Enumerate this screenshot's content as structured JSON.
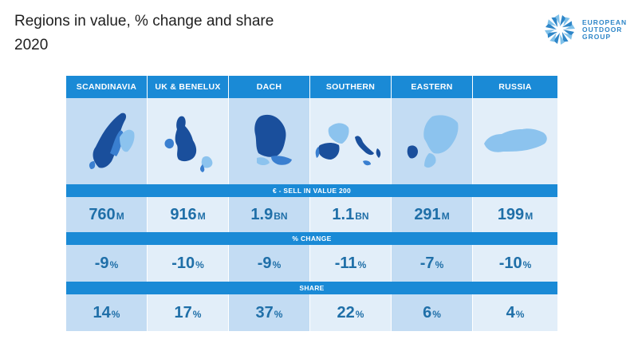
{
  "title": {
    "line1": "Regions in value, % change and share",
    "line2": "2020"
  },
  "logo": {
    "line1": "EUROPEAN",
    "line2": "OUTDOOR",
    "line3": "GROUP",
    "icon": "pinwheel-logo-icon"
  },
  "colors": {
    "header": "#1a8ad6",
    "cell_dark": "#c3dcf3",
    "cell_light": "#e2eef9",
    "value_text": "#1f6fa8",
    "map_dark": "#1a4f9c",
    "map_mid": "#3a7fd0",
    "map_light": "#8cc3ee"
  },
  "regions": [
    {
      "name": "SCANDINAVIA",
      "map": "scandinavia-map-icon"
    },
    {
      "name": "UK & BENELUX",
      "map": "uk-benelux-map-icon"
    },
    {
      "name": "DACH",
      "map": "dach-map-icon"
    },
    {
      "name": "SOUTHERN",
      "map": "southern-map-icon"
    },
    {
      "name": "EASTERN",
      "map": "eastern-map-icon"
    },
    {
      "name": "RUSSIA",
      "map": "russia-map-icon"
    }
  ],
  "sections": {
    "value": "€ - SELL IN VALUE 200",
    "change": "% CHANGE",
    "share": "SHARE"
  },
  "value": [
    {
      "num": "760",
      "unit": "M"
    },
    {
      "num": "916",
      "unit": "M"
    },
    {
      "num": "1.9",
      "unit": "BN"
    },
    {
      "num": "1.1",
      "unit": "BN"
    },
    {
      "num": "291",
      "unit": "M"
    },
    {
      "num": "199",
      "unit": "M"
    }
  ],
  "change": [
    {
      "num": "-9",
      "unit": "%"
    },
    {
      "num": "-10",
      "unit": "%"
    },
    {
      "num": "-9",
      "unit": "%"
    },
    {
      "num": "-11",
      "unit": "%"
    },
    {
      "num": "-7",
      "unit": "%"
    },
    {
      "num": "-10",
      "unit": "%"
    }
  ],
  "share": [
    {
      "num": "14",
      "unit": "%"
    },
    {
      "num": "17",
      "unit": "%"
    },
    {
      "num": "37",
      "unit": "%"
    },
    {
      "num": "22",
      "unit": "%"
    },
    {
      "num": "6",
      "unit": "%"
    },
    {
      "num": "4",
      "unit": "%"
    }
  ]
}
